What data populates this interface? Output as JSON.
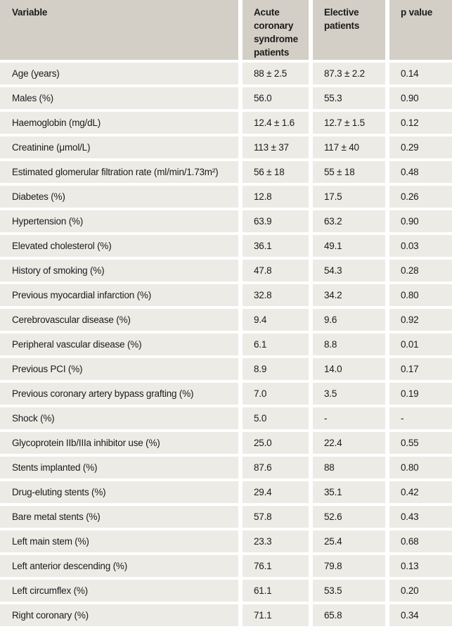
{
  "colors": {
    "header_bg": "#d3cfc6",
    "row_bg": "#ecebe6",
    "gap": "#ffffff",
    "text": "#1b1b1b"
  },
  "table": {
    "columns": [
      {
        "label": "Variable"
      },
      {
        "label": "Acute coronary syndrome patients"
      },
      {
        "label": "Elective patients"
      },
      {
        "label": "p value"
      }
    ],
    "rows": [
      {
        "variable": "Age (years)",
        "acs": "88 ± 2.5",
        "elective": "87.3 ± 2.2",
        "p": "0.14"
      },
      {
        "variable": "Males (%)",
        "acs": "56.0",
        "elective": "55.3",
        "p": "0.90"
      },
      {
        "variable": "Haemoglobin (mg/dL)",
        "acs": "12.4 ± 1.6",
        "elective": "12.7 ± 1.5",
        "p": "0.12"
      },
      {
        "variable": "Creatinine (μmol/L)",
        "acs": "113 ± 37",
        "elective": "117 ± 40",
        "p": "0.29"
      },
      {
        "variable": "Estimated glomerular filtration rate (ml/min/1.73m²)",
        "acs": "56 ± 18",
        "elective": "55 ± 18",
        "p": "0.48"
      },
      {
        "variable": "Diabetes (%)",
        "acs": "12.8",
        "elective": "17.5",
        "p": "0.26"
      },
      {
        "variable": "Hypertension (%)",
        "acs": "63.9",
        "elective": "63.2",
        "p": "0.90"
      },
      {
        "variable": "Elevated cholesterol (%)",
        "acs": "36.1",
        "elective": "49.1",
        "p": "0.03"
      },
      {
        "variable": "History of smoking (%)",
        "acs": "47.8",
        "elective": "54.3",
        "p": "0.28"
      },
      {
        "variable": "Previous myocardial infarction (%)",
        "acs": "32.8",
        "elective": "34.2",
        "p": "0.80"
      },
      {
        "variable": "Cerebrovascular disease (%)",
        "acs": "9.4",
        "elective": "9.6",
        "p": "0.92"
      },
      {
        "variable": "Peripheral vascular disease (%)",
        "acs": "6.1",
        "elective": "8.8",
        "p": "0.01"
      },
      {
        "variable": "Previous PCI (%)",
        "acs": "8.9",
        "elective": "14.0",
        "p": "0.17"
      },
      {
        "variable": "Previous coronary artery bypass grafting (%)",
        "acs": "7.0",
        "elective": "3.5",
        "p": "0.19"
      },
      {
        "variable": "Shock (%)",
        "acs": "5.0",
        "elective": "-",
        "p": "-"
      },
      {
        "variable": "Glycoprotein IIb/IIIa inhibitor use (%)",
        "acs": "25.0",
        "elective": "22.4",
        "p": "0.55"
      },
      {
        "variable": "Stents implanted (%)",
        "acs": "87.6",
        "elective": "88",
        "p": "0.80"
      },
      {
        "variable": "Drug-eluting stents (%)",
        "acs": "29.4",
        "elective": "35.1",
        "p": "0.42"
      },
      {
        "variable": "Bare metal stents (%)",
        "acs": "57.8",
        "elective": "52.6",
        "p": "0.43"
      },
      {
        "variable": "Left main stem (%)",
        "acs": "23.3",
        "elective": "25.4",
        "p": "0.68"
      },
      {
        "variable": "Left anterior descending (%)",
        "acs": "76.1",
        "elective": "79.8",
        "p": "0.13"
      },
      {
        "variable": "Left circumflex (%)",
        "acs": "61.1",
        "elective": "53.5",
        "p": "0.20"
      },
      {
        "variable": "Right coronary (%)",
        "acs": "71.1",
        "elective": "65.8",
        "p": "0.34"
      }
    ]
  }
}
